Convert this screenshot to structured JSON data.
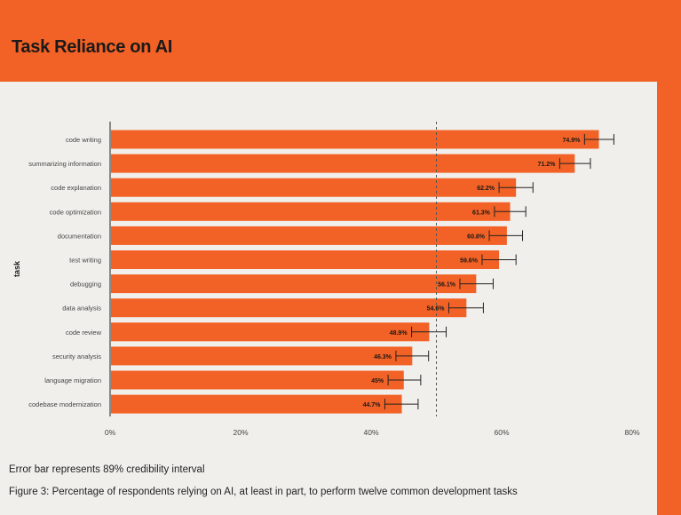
{
  "page": {
    "title": "Task Reliance on AI",
    "error_bar_note": "Error bar represents 89% credibility interval",
    "caption": "Figure 3: Percentage of respondents relying on AI, at least in part, to perform twelve common development tasks"
  },
  "colors": {
    "background": "#F26125",
    "panel": "#F1EFEB",
    "bar": "#F26125",
    "text": "#222222"
  },
  "chart_data": {
    "type": "bar",
    "orientation": "horizontal",
    "ylabel": "task",
    "xlabel": "",
    "xlim": [
      0,
      80
    ],
    "x_ticks": [
      0,
      20,
      40,
      60,
      80
    ],
    "x_tick_labels": [
      "0%",
      "20%",
      "40%",
      "60%",
      "80%"
    ],
    "reference_line": 50,
    "categories": [
      "code writing",
      "summarizing information",
      "code explanation",
      "code optimization",
      "documentation",
      "test writing",
      "debugging",
      "data analysis",
      "code review",
      "security analysis",
      "language migration",
      "codebase modernization"
    ],
    "values": [
      74.9,
      71.2,
      62.2,
      61.3,
      60.8,
      59.6,
      56.1,
      54.6,
      48.9,
      46.3,
      45,
      44.7
    ],
    "value_labels": [
      "74.9%",
      "71.2%",
      "62.2%",
      "61.3%",
      "60.8%",
      "59.6%",
      "56.1%",
      "54.6%",
      "48.9%",
      "46.3%",
      "45%",
      "44.7%"
    ],
    "error_low": [
      72.7,
      68.9,
      59.6,
      58.9,
      58.1,
      57.0,
      53.6,
      51.9,
      46.2,
      43.8,
      42.6,
      42.1
    ],
    "error_high": [
      77.2,
      73.6,
      64.8,
      63.7,
      63.2,
      62.2,
      58.7,
      57.2,
      51.5,
      48.8,
      47.6,
      47.2
    ],
    "legend": "none",
    "grid": false
  }
}
